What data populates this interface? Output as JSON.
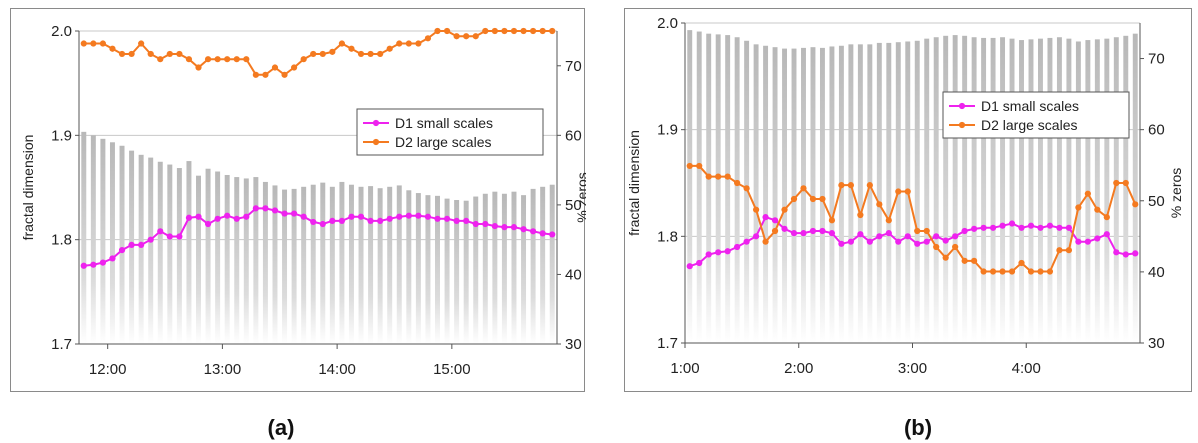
{
  "chart_data": [
    {
      "type": "line",
      "panel_label": "(a)",
      "ylabel": "fractal dimension",
      "y2label": "% zeros",
      "ylim": [
        1.7,
        2.0
      ],
      "y2lim": [
        30,
        75
      ],
      "yticks": [
        "1.7",
        "1.8",
        "1.9",
        "2.0"
      ],
      "y2ticks": [
        "30",
        "40",
        "50",
        "60",
        "70"
      ],
      "xticks": [
        "12:00",
        "13:00",
        "14:00",
        "15:00"
      ],
      "xtick_pos": [
        3,
        15,
        27,
        39
      ],
      "n": 50,
      "grid": "horizontal",
      "legend_position": "upper-right",
      "series": [
        {
          "name": "D1 small scales",
          "axis": "left",
          "color": "#ee22ee",
          "values": [
            1.775,
            1.776,
            1.778,
            1.782,
            1.79,
            1.795,
            1.795,
            1.8,
            1.808,
            1.803,
            1.803,
            1.821,
            1.822,
            1.815,
            1.82,
            1.823,
            1.82,
            1.822,
            1.83,
            1.83,
            1.828,
            1.825,
            1.825,
            1.822,
            1.817,
            1.815,
            1.818,
            1.818,
            1.822,
            1.822,
            1.818,
            1.818,
            1.82,
            1.822,
            1.823,
            1.823,
            1.822,
            1.82,
            1.82,
            1.818,
            1.818,
            1.815,
            1.815,
            1.813,
            1.812,
            1.812,
            1.81,
            1.808,
            1.806,
            1.805
          ]
        },
        {
          "name": "D2 large scales",
          "axis": "left",
          "color": "#f47a20",
          "values": [
            1.988,
            1.988,
            1.988,
            1.983,
            1.978,
            1.978,
            1.988,
            1.978,
            1.973,
            1.978,
            1.978,
            1.973,
            1.965,
            1.973,
            1.973,
            1.973,
            1.973,
            1.973,
            1.958,
            1.958,
            1.965,
            1.958,
            1.965,
            1.973,
            1.978,
            1.978,
            1.98,
            1.988,
            1.983,
            1.978,
            1.978,
            1.978,
            1.983,
            1.988,
            1.988,
            1.988,
            1.993,
            2.0,
            2.0,
            1.995,
            1.995,
            1.995,
            2.0,
            2.0,
            2.0,
            2.0,
            2.0,
            2.0,
            2.0,
            2.0
          ]
        },
        {
          "name": "% zeros",
          "axis": "right",
          "type": "bar",
          "color": "#bdbdbd",
          "values": [
            60.5,
            60,
            59.5,
            59,
            58.5,
            57.8,
            57.2,
            56.8,
            56.2,
            55.8,
            55.3,
            56.3,
            54.2,
            55.2,
            54.8,
            54.3,
            54,
            53.8,
            54,
            53.3,
            52.8,
            52.2,
            52.3,
            52.6,
            52.9,
            53.2,
            52.6,
            53.3,
            52.9,
            52.6,
            52.7,
            52.4,
            52.6,
            52.8,
            52.1,
            51.7,
            51.4,
            51.3,
            50.9,
            50.7,
            50.6,
            51.2,
            51.6,
            51.9,
            51.6,
            51.9,
            51.4,
            52.3,
            52.6,
            52.9
          ]
        }
      ]
    },
    {
      "type": "line",
      "panel_label": "(b)",
      "ylabel": "fractal dimension",
      "y2label": "% zeros",
      "ylim": [
        1.7,
        2.0
      ],
      "y2lim": [
        30,
        75
      ],
      "yticks": [
        "1.7",
        "1.8",
        "1.9",
        "2.0"
      ],
      "y2ticks": [
        "30",
        "40",
        "50",
        "60",
        "70"
      ],
      "xticks": [
        "1:00",
        "2:00",
        "3:00",
        "4:00"
      ],
      "xtick_pos": [
        0,
        12,
        24,
        36
      ],
      "n": 48,
      "grid": "horizontal",
      "legend_position": "upper-right",
      "series": [
        {
          "name": "D1 small scales",
          "axis": "left",
          "color": "#ee22ee",
          "values": [
            1.772,
            1.775,
            1.783,
            1.785,
            1.786,
            1.79,
            1.795,
            1.8,
            1.818,
            1.815,
            1.807,
            1.803,
            1.803,
            1.805,
            1.805,
            1.803,
            1.793,
            1.795,
            1.802,
            1.795,
            1.8,
            1.803,
            1.795,
            1.8,
            1.793,
            1.795,
            1.8,
            1.796,
            1.8,
            1.805,
            1.807,
            1.808,
            1.808,
            1.81,
            1.812,
            1.808,
            1.81,
            1.808,
            1.81,
            1.808,
            1.808,
            1.795,
            1.795,
            1.798,
            1.802,
            1.785,
            1.783,
            1.784
          ]
        },
        {
          "name": "D2 large scales",
          "axis": "left",
          "color": "#f47a20",
          "values": [
            1.866,
            1.866,
            1.856,
            1.856,
            1.856,
            1.85,
            1.845,
            1.825,
            1.795,
            1.805,
            1.825,
            1.835,
            1.845,
            1.835,
            1.835,
            1.815,
            1.848,
            1.848,
            1.82,
            1.848,
            1.83,
            1.815,
            1.842,
            1.842,
            1.805,
            1.805,
            1.79,
            1.78,
            1.79,
            1.777,
            1.777,
            1.767,
            1.767,
            1.767,
            1.767,
            1.775,
            1.767,
            1.767,
            1.767,
            1.787,
            1.787,
            1.827,
            1.84,
            1.825,
            1.818,
            1.85,
            1.85,
            1.83
          ]
        },
        {
          "name": "% zeros",
          "axis": "right",
          "type": "bar",
          "color": "#bdbdbd",
          "values": [
            74,
            73.8,
            73.5,
            73.4,
            73.3,
            73,
            72.5,
            72,
            71.8,
            71.6,
            71.4,
            71.4,
            71.5,
            71.6,
            71.5,
            71.7,
            71.8,
            72,
            72,
            72,
            72.2,
            72.2,
            72.3,
            72.4,
            72.5,
            72.8,
            73,
            73.2,
            73.3,
            73.2,
            73,
            72.9,
            72.9,
            73,
            72.8,
            72.6,
            72.7,
            72.8,
            72.9,
            73,
            72.8,
            72.4,
            72.6,
            72.7,
            72.8,
            73,
            73.2,
            73.5
          ]
        }
      ]
    }
  ]
}
